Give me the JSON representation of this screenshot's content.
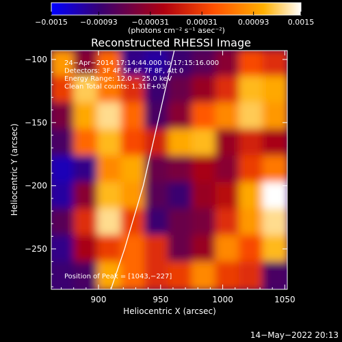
{
  "chart_data": {
    "type": "heatmap",
    "title": "Reconstructed RHESSI Image",
    "xlabel": "Heliocentric X (arcsec)",
    "ylabel": "Heliocentric Y (arcsec)",
    "xlim": [
      862,
      1052
    ],
    "ylim": [
      -282,
      -93
    ],
    "x_ticks": [
      900,
      950,
      1000,
      1050
    ],
    "y_ticks": [
      -250,
      -200,
      -150,
      -100
    ],
    "x_tick_labels": [
      "900",
      "950",
      "1000",
      "1050"
    ],
    "y_tick_labels": [
      "−250",
      "−200",
      "−150",
      "−100"
    ],
    "colorbar": {
      "min": -0.0015,
      "max": 0.0015,
      "tick_values": [
        -0.0015,
        -0.00093,
        -0.00031,
        0.00031,
        0.00093,
        0.0015
      ],
      "tick_labels": [
        "−0.0015",
        "−0.00093",
        "−0.00031",
        "0.00031",
        "0.00093",
        "0.0015"
      ],
      "unit_label": "(photons cm⁻² s⁻¹ asec⁻²)",
      "colormap": [
        "#0000ff",
        "#3a0070",
        "#b00010",
        "#ff5000",
        "#ffb000",
        "#ffffff"
      ]
    },
    "annotations": [
      "24−Apr−2014 17:14:44.000 to 17:15:16.000",
      "Detectors: 3F 4F 5F 6F 7F 8F, Att 0",
      "Energy Range: 12.0 − 25.0 keV",
      "Clean     Total counts: 1.31E+03"
    ],
    "peak_label": "Position of Peak = [1043,−227]",
    "peak": [
      1043,
      -227
    ],
    "limb_points": [
      [
        910,
        -282
      ],
      [
        921,
        -250
      ],
      [
        930,
        -220
      ],
      [
        936,
        -200
      ],
      [
        943,
        -170
      ],
      [
        950,
        -140
      ],
      [
        957,
        -110
      ],
      [
        961,
        -93
      ]
    ],
    "image_grid": {
      "rows": 9,
      "cols": 10,
      "values": [
        [
          0.0009,
          -0.0004,
          0.0006,
          -0.001,
          -0.0011,
          -0.0009,
          -0.0007,
          -0.0004,
          0.0004,
          0.0002
        ],
        [
          0.0003,
          0.0012,
          0.0007,
          0.0002,
          -0.0009,
          -0.0006,
          -0.0003,
          0.0002,
          0.0011,
          0.001
        ],
        [
          -0.0005,
          0.001,
          0.0013,
          0.0006,
          -0.0008,
          -0.0004,
          0.0005,
          0.0008,
          0.0012,
          0.0009
        ],
        [
          -0.0008,
          0.0006,
          0.0011,
          0.0004,
          0.0001,
          0.001,
          0.0011,
          -0.0003,
          0.0001,
          -0.0002
        ],
        [
          -0.0012,
          -0.001,
          0.0008,
          0.001,
          -0.0006,
          -0.0005,
          -0.0002,
          -0.0004,
          0.0003,
          0.0007
        ],
        [
          -0.0011,
          -0.0004,
          0.0011,
          0.0009,
          -0.0007,
          -0.0009,
          -0.0003,
          -0.0001,
          0.001,
          0.0015
        ],
        [
          -0.0007,
          0.0002,
          0.0013,
          0.0003,
          -0.0009,
          -0.0006,
          -0.0005,
          0.0002,
          0.0009,
          0.0013
        ],
        [
          -0.001,
          -0.0002,
          0.0003,
          0.0006,
          0.0002,
          -0.0006,
          -0.0003,
          0.0008,
          0.0004,
          0.0011
        ],
        [
          -0.0009,
          -0.0008,
          0.001,
          0.0006,
          0.0002,
          0.0003,
          0.0008,
          0.0003,
          0.0002,
          -0.0008
        ]
      ]
    }
  },
  "footer_timestamp": "14−May−2022 20:13"
}
